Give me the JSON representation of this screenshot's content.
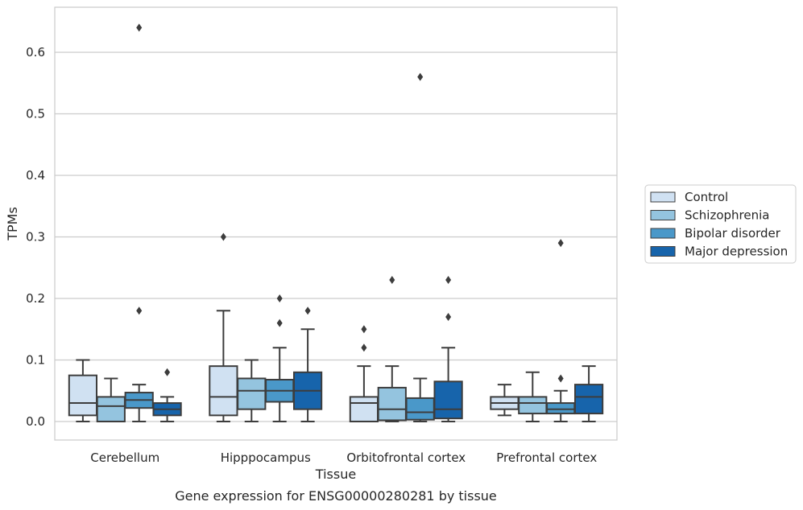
{
  "chart_data": {
    "type": "boxplot",
    "title": "",
    "caption": "Gene expression for ENSG00000280281 by tissue",
    "xlabel": "Tissue",
    "ylabel": "TPMs",
    "ylim": [
      -0.03,
      0.675
    ],
    "yticks": [
      0.0,
      0.1,
      0.2,
      0.3,
      0.4,
      0.5,
      0.6
    ],
    "ytick_labels": [
      "0.0",
      "0.1",
      "0.2",
      "0.3",
      "0.4",
      "0.5",
      "0.6"
    ],
    "grid": "horizontal",
    "legend_position": "right",
    "categories": [
      "Cerebellum",
      "Hipppocampus",
      "Orbitofrontal cortex",
      "Prefrontal cortex"
    ],
    "series": [
      {
        "name": "Control",
        "color": "#d0e1f2",
        "boxes": [
          {
            "whislo": 0.0,
            "q1": 0.01,
            "med": 0.03,
            "q3": 0.075,
            "whishi": 0.1,
            "fliers": []
          },
          {
            "whislo": 0.0,
            "q1": 0.01,
            "med": 0.04,
            "q3": 0.09,
            "whishi": 0.18,
            "fliers": [
              0.3
            ]
          },
          {
            "whislo": 0.0,
            "q1": 0.0,
            "med": 0.03,
            "q3": 0.04,
            "whishi": 0.09,
            "fliers": [
              0.12,
              0.15
            ]
          },
          {
            "whislo": 0.01,
            "q1": 0.02,
            "med": 0.03,
            "q3": 0.04,
            "whishi": 0.06,
            "fliers": []
          }
        ]
      },
      {
        "name": "Schizophrenia",
        "color": "#94c4df",
        "boxes": [
          {
            "whislo": 0.0,
            "q1": 0.0,
            "med": 0.025,
            "q3": 0.04,
            "whishi": 0.07,
            "fliers": []
          },
          {
            "whislo": 0.0,
            "q1": 0.02,
            "med": 0.05,
            "q3": 0.07,
            "whishi": 0.1,
            "fliers": []
          },
          {
            "whislo": 0.0,
            "q1": 0.002,
            "med": 0.02,
            "q3": 0.055,
            "whishi": 0.09,
            "fliers": [
              0.23
            ]
          },
          {
            "whislo": 0.0,
            "q1": 0.013,
            "med": 0.03,
            "q3": 0.04,
            "whishi": 0.08,
            "fliers": []
          }
        ]
      },
      {
        "name": "Bipolar disorder",
        "color": "#4a98c9",
        "boxes": [
          {
            "whislo": 0.0,
            "q1": 0.022,
            "med": 0.035,
            "q3": 0.047,
            "whishi": 0.06,
            "fliers": [
              0.18,
              0.64
            ]
          },
          {
            "whislo": 0.0,
            "q1": 0.032,
            "med": 0.05,
            "q3": 0.068,
            "whishi": 0.12,
            "fliers": [
              0.16,
              0.2
            ]
          },
          {
            "whislo": 0.0,
            "q1": 0.003,
            "med": 0.015,
            "q3": 0.038,
            "whishi": 0.07,
            "fliers": [
              0.56
            ]
          },
          {
            "whislo": 0.0,
            "q1": 0.013,
            "med": 0.02,
            "q3": 0.03,
            "whishi": 0.05,
            "fliers": [
              0.07,
              0.29
            ]
          }
        ]
      },
      {
        "name": "Major depression",
        "color": "#1764ab",
        "boxes": [
          {
            "whislo": 0.0,
            "q1": 0.01,
            "med": 0.02,
            "q3": 0.03,
            "whishi": 0.04,
            "fliers": [
              0.08
            ]
          },
          {
            "whislo": 0.0,
            "q1": 0.02,
            "med": 0.05,
            "q3": 0.08,
            "whishi": 0.15,
            "fliers": [
              0.18
            ]
          },
          {
            "whislo": 0.0,
            "q1": 0.005,
            "med": 0.02,
            "q3": 0.065,
            "whishi": 0.12,
            "fliers": [
              0.17,
              0.23
            ]
          },
          {
            "whislo": 0.0,
            "q1": 0.013,
            "med": 0.04,
            "q3": 0.06,
            "whishi": 0.09,
            "fliers": []
          }
        ]
      }
    ]
  }
}
